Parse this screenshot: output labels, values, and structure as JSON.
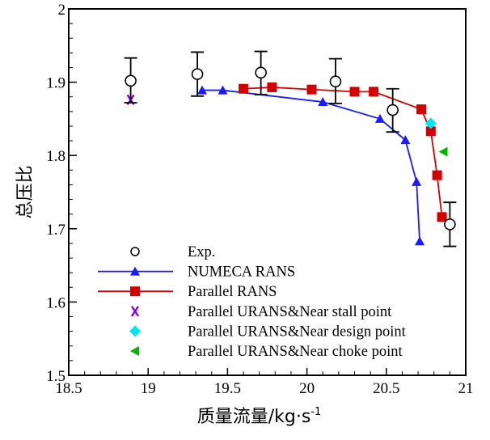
{
  "chart_data": {
    "type": "line",
    "title": "",
    "xlabel": "质量流量/kg·s",
    "xlabel_superscript": "-1",
    "ylabel": "总压比",
    "xlim": [
      18.5,
      21
    ],
    "ylim": [
      1.5,
      2.0
    ],
    "grid": false,
    "legend_position": "bottom-left",
    "x_major_ticks": [
      18.5,
      19,
      19.5,
      20,
      20.5,
      21
    ],
    "x_tick_labels": [
      "18.5",
      "19",
      "19.5",
      "20",
      "20.5",
      "21"
    ],
    "x_minor_step": 0.1,
    "y_major_ticks": [
      1.5,
      1.6,
      1.7,
      1.8,
      1.9,
      2.0
    ],
    "y_tick_labels": [
      "1.5",
      "1.6",
      "1.7",
      "1.8",
      "1.9",
      "2"
    ],
    "y_minor_step": 0.02,
    "series": [
      {
        "name": "Exp.",
        "marker": "open-circle",
        "line": false,
        "color": "#000000",
        "x": [
          18.89,
          19.31,
          19.71,
          20.18,
          20.54,
          20.9
        ],
        "y": [
          1.902,
          1.911,
          1.913,
          1.901,
          1.862,
          1.706
        ],
        "y_err_low": [
          1.872,
          1.881,
          1.883,
          1.871,
          1.832,
          1.676
        ],
        "y_err_high": [
          1.933,
          1.941,
          1.942,
          1.932,
          1.891,
          1.736
        ]
      },
      {
        "name": "NUMECA RANS",
        "marker": "triangle-up",
        "line": true,
        "color": "#1a1aff",
        "x": [
          19.34,
          19.47,
          20.1,
          20.46,
          20.62,
          20.69,
          20.71
        ],
        "y": [
          1.889,
          1.889,
          1.873,
          1.85,
          1.821,
          1.764,
          1.683
        ]
      },
      {
        "name": "Parallel RANS",
        "marker": "square",
        "line": true,
        "color": "#d40000",
        "x": [
          19.6,
          19.78,
          20.03,
          20.3,
          20.42,
          20.72,
          20.78,
          20.82,
          20.85
        ],
        "y": [
          1.891,
          1.893,
          1.89,
          1.887,
          1.887,
          1.863,
          1.833,
          1.773,
          1.716
        ]
      },
      {
        "name": "Parallel URANS&Near stall point",
        "marker": "x",
        "line": false,
        "color": "#8a00e6",
        "x": [
          18.89
        ],
        "y": [
          1.876
        ]
      },
      {
        "name": "Parallel URANS&Near design point",
        "marker": "diamond",
        "line": false,
        "color": "#00e5ee",
        "x": [
          20.78
        ],
        "y": [
          1.844
        ]
      },
      {
        "name": "Parallel URANS&Near choke point",
        "marker": "triangle-left",
        "line": false,
        "color": "#00b400",
        "x": [
          20.86
        ],
        "y": [
          1.805
        ]
      }
    ]
  }
}
